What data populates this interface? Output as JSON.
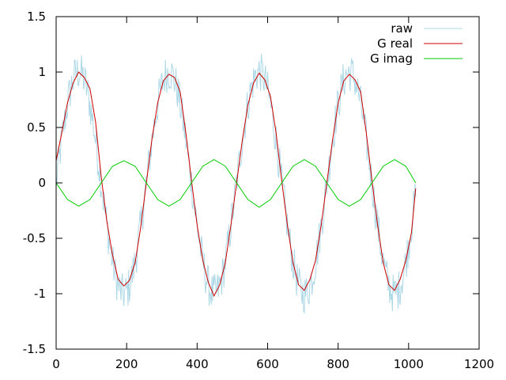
{
  "chart_data": {
    "type": "line",
    "title": "",
    "xlabel": "",
    "ylabel": "",
    "xlim": [
      0,
      1200
    ],
    "ylim": [
      -1.5,
      1.5
    ],
    "grid": false,
    "legend_position": "top-right",
    "x_ticks": [
      0,
      200,
      400,
      600,
      800,
      1000,
      1200
    ],
    "x_tick_labels": [
      "0",
      "200",
      "400",
      "600",
      "800",
      "1000",
      "1200"
    ],
    "y_ticks": [
      -1.5,
      -1,
      -0.5,
      0,
      0.5,
      1,
      1.5
    ],
    "y_tick_labels": [
      "-1.5",
      "-1",
      "-0.5",
      "0",
      "0.5",
      "1",
      "1.5"
    ],
    "series": [
      {
        "name": "raw",
        "color": "#add8e6",
        "x_range": [
          0,
          1020
        ],
        "amplitude": 1.0,
        "period": 256,
        "phase": "sin",
        "noise": 0.18,
        "x": [
          0,
          64,
          128,
          192,
          256,
          320,
          384,
          448,
          512,
          576,
          640,
          704,
          768,
          832,
          896,
          960,
          1020
        ],
        "y": [
          0,
          1.0,
          0,
          -1.0,
          0,
          1.0,
          0,
          -1.0,
          0,
          1.0,
          0,
          -1.0,
          0,
          1.0,
          0,
          -1.0,
          0.1
        ]
      },
      {
        "name": "G real",
        "color": "#cc0000",
        "x": [
          0,
          16,
          32,
          48,
          64,
          80,
          96,
          112,
          128,
          144,
          160,
          176,
          192,
          208,
          224,
          240,
          256,
          272,
          288,
          304,
          320,
          336,
          352,
          368,
          384,
          400,
          416,
          432,
          448,
          464,
          480,
          496,
          512,
          528,
          544,
          560,
          576,
          592,
          608,
          624,
          640,
          656,
          672,
          688,
          704,
          720,
          736,
          752,
          768,
          784,
          800,
          816,
          832,
          848,
          864,
          880,
          896,
          912,
          928,
          944,
          960,
          976,
          992,
          1008,
          1020
        ],
        "y": [
          0.2,
          0.45,
          0.72,
          0.9,
          1.0,
          0.95,
          0.85,
          0.55,
          0.05,
          -0.35,
          -0.65,
          -0.87,
          -0.93,
          -0.88,
          -0.72,
          -0.4,
          0.0,
          0.4,
          0.72,
          0.92,
          0.98,
          0.95,
          0.82,
          0.45,
          0.02,
          -0.38,
          -0.7,
          -0.9,
          -1.02,
          -0.92,
          -0.72,
          -0.38,
          0.0,
          0.38,
          0.7,
          0.9,
          0.99,
          0.93,
          0.78,
          0.45,
          0.02,
          -0.38,
          -0.72,
          -0.92,
          -0.97,
          -0.87,
          -0.7,
          -0.38,
          0.0,
          0.38,
          0.72,
          0.92,
          0.98,
          0.93,
          0.82,
          0.45,
          0.02,
          -0.38,
          -0.72,
          -0.92,
          -0.97,
          -0.87,
          -0.7,
          -0.45,
          -0.05
        ]
      },
      {
        "name": "G imag",
        "color": "#00cc00",
        "x": [
          0,
          32,
          64,
          96,
          128,
          160,
          192,
          224,
          256,
          288,
          320,
          352,
          384,
          416,
          448,
          480,
          512,
          544,
          576,
          608,
          640,
          672,
          704,
          736,
          768,
          800,
          832,
          864,
          896,
          928,
          960,
          992,
          1020
        ],
        "y": [
          0.0,
          -0.15,
          -0.21,
          -0.15,
          0.0,
          0.15,
          0.2,
          0.15,
          0.0,
          -0.15,
          -0.21,
          -0.15,
          0.0,
          0.15,
          0.21,
          0.15,
          0.0,
          -0.15,
          -0.22,
          -0.15,
          0.0,
          0.15,
          0.21,
          0.15,
          0.0,
          -0.15,
          -0.21,
          -0.15,
          0.0,
          0.15,
          0.21,
          0.15,
          0.0
        ]
      }
    ]
  }
}
